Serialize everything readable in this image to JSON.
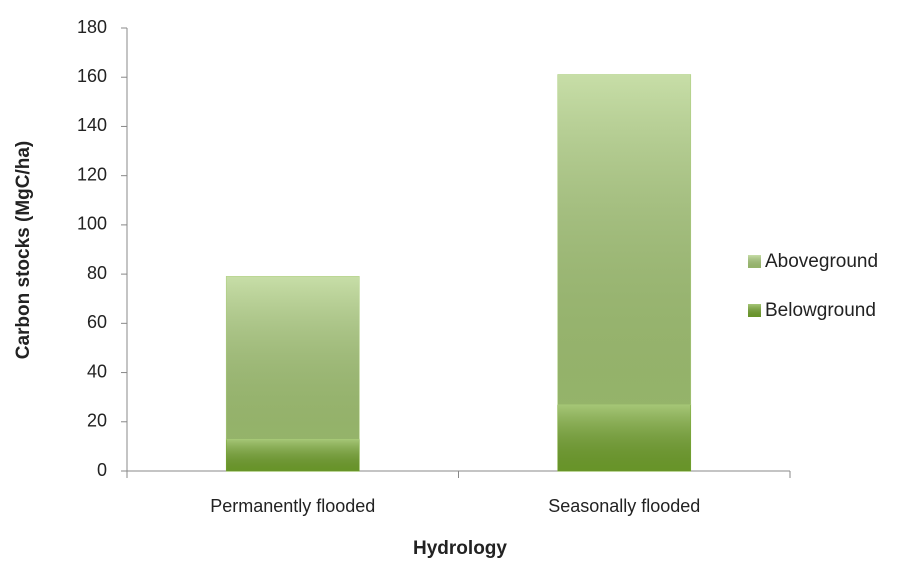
{
  "chart_data": {
    "type": "stacked_bar",
    "xlabel": "Hydrology",
    "ylabel": "Carbon stocks (MgC/ha)",
    "categories": [
      "Permanently flooded",
      "Seasonally flooded"
    ],
    "series": [
      {
        "name": "Belowground",
        "color": "#76a82e",
        "values": [
          13,
          27
        ]
      },
      {
        "name": "Aboveground",
        "color": "#a9cc78",
        "values": [
          66,
          134
        ]
      }
    ],
    "ylim": [
      0,
      180
    ],
    "yticks": [
      0,
      20,
      40,
      60,
      80,
      100,
      120,
      140,
      160,
      180
    ],
    "grid": false,
    "legend": "right"
  }
}
